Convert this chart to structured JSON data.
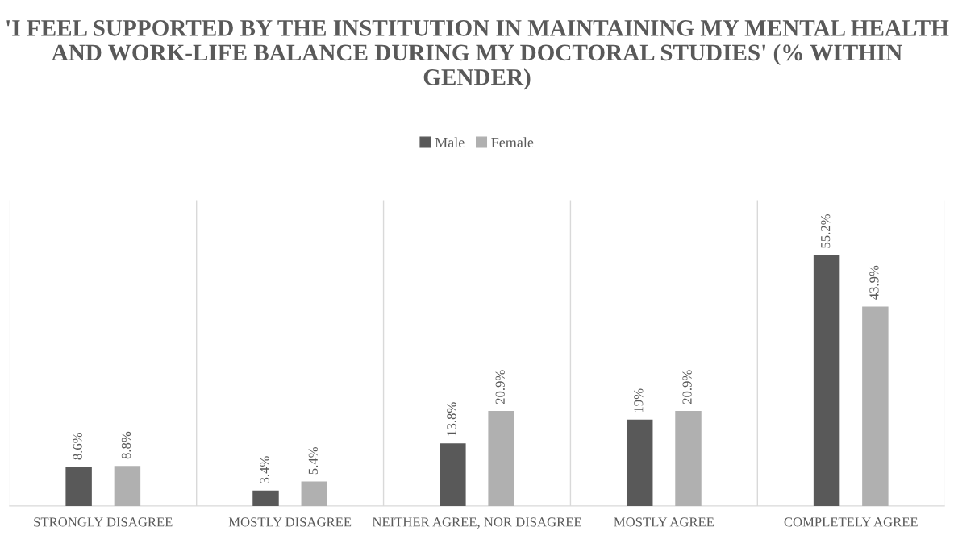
{
  "chart_data": {
    "type": "bar",
    "title": "'I FEEL SUPPORTED BY THE INSTITUTION IN MAINTAINING MY MENTAL HEALTH AND WORK-LIFE BALANCE DURING MY DOCTORAL STUDIES' (% WITHIN GENDER)",
    "categories": [
      "STRONGLY DISAGREE",
      "MOSTLY DISAGREE",
      "NEITHER AGREE, NOR DISAGREE",
      "MOSTLY AGREE",
      "COMPLETELY AGREE"
    ],
    "series": [
      {
        "name": "Male",
        "color": "#595959",
        "values": [
          8.6,
          3.4,
          13.8,
          19,
          55.2
        ],
        "value_labels": [
          "8.6%",
          "3.4%",
          "13.8%",
          "19%",
          "55.2%"
        ]
      },
      {
        "name": "Female",
        "color": "#b0b0b0",
        "values": [
          8.8,
          5.4,
          20.9,
          20.9,
          43.9
        ],
        "value_labels": [
          "8.8%",
          "5.4%",
          "20.9%",
          "20.9%",
          "43.9%"
        ]
      }
    ],
    "grid": "x",
    "legend": "top"
  }
}
